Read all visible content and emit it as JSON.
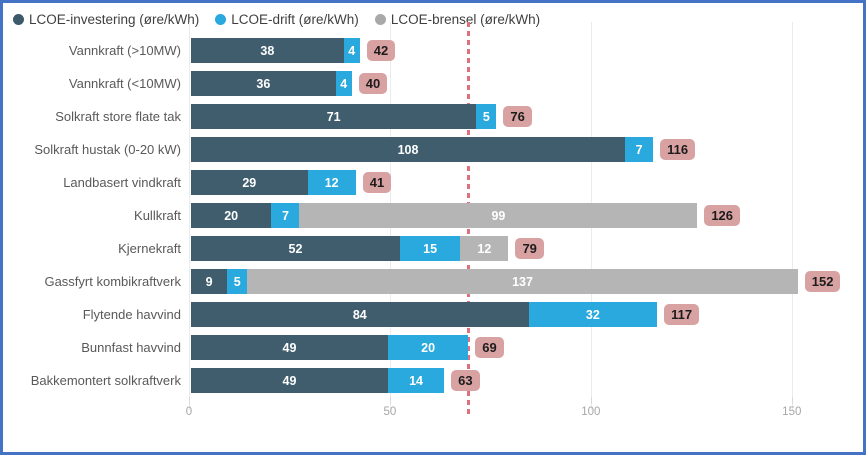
{
  "frame": {
    "border_color": "#4472c4",
    "background": "#ffffff"
  },
  "legend": {
    "items": [
      {
        "label": "LCOE-investering (øre/kWh)",
        "color": "#3d5a6a"
      },
      {
        "label": "LCOE-drift (øre/kWh)",
        "color": "#29a9dd"
      },
      {
        "label": "LCOE-brensel (øre/kWh)",
        "color": "#a9a9a9"
      }
    ]
  },
  "chart_data": {
    "type": "bar",
    "orientation": "horizontal",
    "stacked": true,
    "title": "",
    "xlabel": "",
    "ylabel": "",
    "grid": true,
    "legend_position": "top",
    "xlim": [
      0,
      162
    ],
    "x_ticks": [
      0,
      50,
      100,
      150
    ],
    "categories": [
      "Vannkraft (>10MW)",
      "Vannkraft (<10MW)",
      "Solkraft store flate tak",
      "Solkraft hustak (0-20 kW)",
      "Landbasert vindkraft",
      "Kullkraft",
      "Kjernekraft",
      "Gassfyrt kombikraftverk",
      "Flytende havvind",
      "Bunnfast havvind",
      "Bakkemontert solkraftverk"
    ],
    "series": [
      {
        "name": "LCOE-investering (øre/kWh)",
        "color": "#3f5d6d",
        "values": [
          38,
          36,
          71,
          108,
          29,
          20,
          52,
          9,
          84,
          49,
          49
        ]
      },
      {
        "name": "LCOE-drift (øre/kWh)",
        "color": "#29a9dd",
        "values": [
          4,
          4,
          5,
          7,
          12,
          7,
          15,
          5,
          32,
          20,
          14
        ]
      },
      {
        "name": "LCOE-brensel (øre/kWh)",
        "color": "#b5b5b5",
        "values": [
          0,
          0,
          0,
          0,
          0,
          99,
          12,
          137,
          0,
          0,
          0
        ]
      }
    ],
    "totals": [
      42,
      40,
      76,
      116,
      41,
      126,
      79,
      152,
      117,
      69,
      63
    ],
    "total_label_bg": "#d9a2a2",
    "reference_line": {
      "value": 69.5,
      "color": "#e0707b",
      "style": "dashed"
    }
  }
}
